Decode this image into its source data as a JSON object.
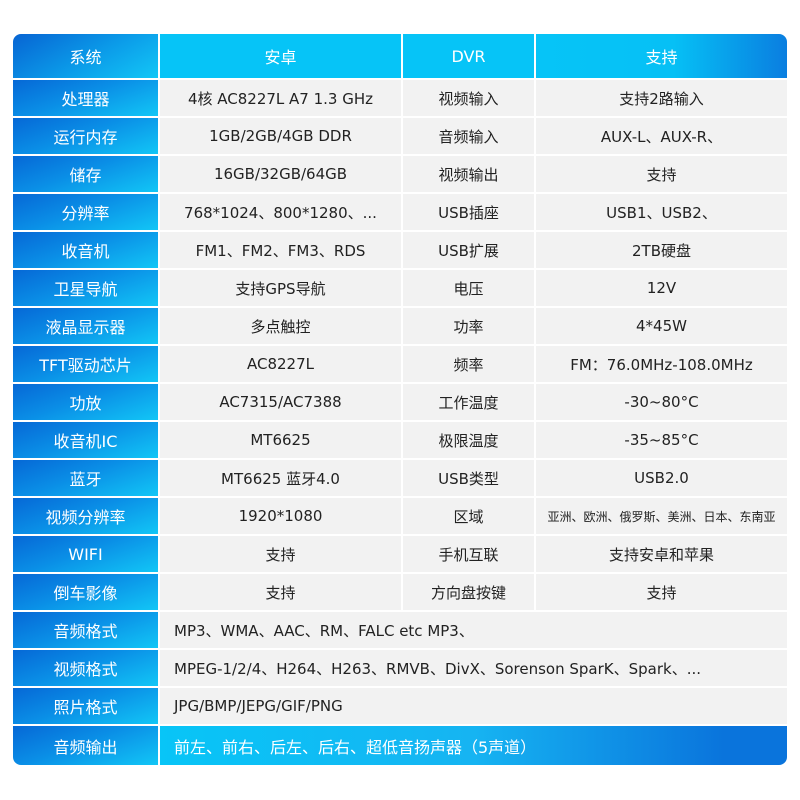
{
  "header": [
    "系统",
    "安卓",
    "DVR",
    "支持"
  ],
  "rows": [
    [
      "处理器",
      "4核  AC8227L A7 1.3 GHz",
      "视频输入",
      "支持2路输入"
    ],
    [
      "运行内存",
      "1GB/2GB/4GB  DDR",
      "音频输入",
      "AUX-L、AUX-R、"
    ],
    [
      "储存",
      "16GB/32GB/64GB",
      "视频输出",
      "支持"
    ],
    [
      "分辨率",
      "768*1024、800*1280、...",
      "USB插座",
      "USB1、USB2、"
    ],
    [
      "收音机",
      "FM1、FM2、FM3、RDS",
      "USB扩展",
      "2TB硬盘"
    ],
    [
      "卫星导航",
      "支持GPS导航",
      "电压",
      "12V"
    ],
    [
      "液晶显示器",
      "多点触控",
      "功率",
      "4*45W"
    ],
    [
      "TFT驱动芯片",
      "AC8227L",
      "频率",
      "FM：76.0MHz-108.0MHz"
    ],
    [
      "功放",
      "AC7315/AC7388",
      "工作温度",
      "-30~80°C"
    ],
    [
      "收音机IC",
      "MT6625",
      "极限温度",
      "-35~85°C"
    ],
    [
      "蓝牙",
      "MT6625 蓝牙4.0",
      "USB类型",
      "USB2.0"
    ],
    [
      "视频分辨率",
      "1920*1080",
      "区域",
      "亚洲、欧洲、俄罗斯、美洲、日本、东南亚"
    ],
    [
      "WIFI",
      "支持",
      "手机互联",
      "支持安卓和苹果"
    ],
    [
      "倒车影像",
      "支持",
      "方向盘按键",
      "支持"
    ]
  ],
  "wide_rows": [
    [
      "音频格式",
      "MP3、WMA、AAC、RM、FALC etc MP3、"
    ],
    [
      "视频格式",
      "MPEG-1/2/4、H264、H263、RMVB、DivX、Sorenson SparK、Spark、..."
    ],
    [
      "照片格式",
      "JPG/BMP/JEPG/GIF/PNG"
    ],
    [
      "音频输出",
      "前左、前右、后左、后右、超低音扬声器（5声道）"
    ]
  ],
  "colors": {
    "label_blue": "#0668d6",
    "cyan": "#06c4f7",
    "cell_bg": "#f2f2f2"
  }
}
